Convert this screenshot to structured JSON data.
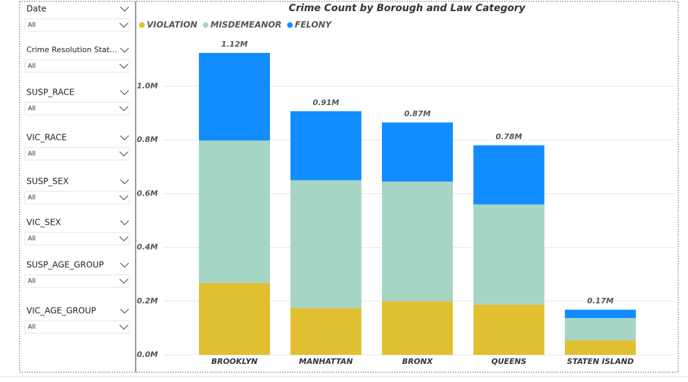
{
  "slicers": [
    {
      "label": "Date",
      "value": "All"
    },
    {
      "label": "Crime Resolution Stat…",
      "value": "All"
    },
    {
      "label": "SUSP_RACE",
      "value": "All"
    },
    {
      "label": "VIC_RACE",
      "value": "All"
    },
    {
      "label": "SUSP_SEX",
      "value": "All"
    },
    {
      "label": "VIC_SEX",
      "value": "All"
    },
    {
      "label": "SUSP_AGE_GROUP",
      "value": "All"
    },
    {
      "label": "VIC_AGE_GROUP",
      "value": "All"
    }
  ],
  "chart_data": {
    "type": "stacked_bar",
    "title": "Crime Count by Borough and Law Category",
    "categories": [
      "BROOKLYN",
      "MANHATTAN",
      "BRONX",
      "QUEENS",
      "STATEN ISLAND"
    ],
    "series": [
      {
        "name": "VIOLATION",
        "color": "#E0C030",
        "values": [
          267000,
          174000,
          199000,
          187000,
          54000
        ]
      },
      {
        "name": "MISDEMEANOR",
        "color": "#A6D5C3",
        "values": [
          531000,
          476000,
          446000,
          373000,
          83000
        ]
      },
      {
        "name": "FELONY",
        "color": "#118DFF",
        "values": [
          326000,
          257000,
          220000,
          220000,
          31000
        ]
      }
    ],
    "totals": [
      1124000,
      907000,
      865000,
      780000,
      168000
    ],
    "total_labels": [
      "1.12M",
      "0.91M",
      "0.87M",
      "0.78M",
      "0.17M"
    ],
    "ylim": [
      0,
      1150000
    ],
    "yticks": [
      {
        "value": 0,
        "label": "0.0M"
      },
      {
        "value": 200000,
        "label": "0.2M"
      },
      {
        "value": 400000,
        "label": "0.4M"
      },
      {
        "value": 600000,
        "label": "0.6M"
      },
      {
        "value": 800000,
        "label": "0.8M"
      },
      {
        "value": 1000000,
        "label": "1.0M"
      }
    ],
    "grid": true
  }
}
